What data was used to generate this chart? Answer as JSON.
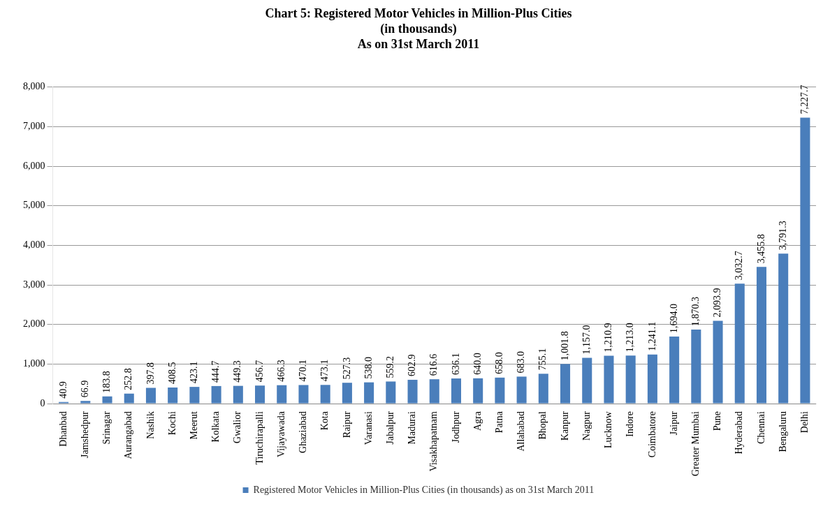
{
  "chart_data": {
    "type": "bar",
    "title": "Chart 5: Registered Motor Vehicles in Million-Plus Cities\n(in thousands)\nAs on 31st March 2011",
    "categories": [
      "Dhanbad",
      "Jamshedpur",
      "Srinagar",
      "Aurangabad",
      "Nashik",
      "Kochi",
      "Meerut",
      "Kolkata",
      "Gwalior",
      "Tiruchirapalli",
      "Vijayawada",
      "Ghaziabad",
      "Kota",
      "Raipur",
      "Varanasi",
      "Jabalpur",
      "Madurai",
      "Visakhapatnam",
      "Jodhpur",
      "Agra",
      "Patna",
      "Allahabad",
      "Bhopal",
      "Kanpur",
      "Nagpur",
      "Lucknow",
      "Indore",
      "Coimbatore",
      "Jaipur",
      "Greater Mumbai",
      "Pune",
      "Hyderabad",
      "Chennai",
      "Bengaluru",
      "Delhi"
    ],
    "series": [
      {
        "name": "Registered Motor Vehicles in Million-Plus Cities (in thousands) as on 31st March 2011",
        "color": "#4a7ebb",
        "values": [
          40.9,
          66.9,
          183.8,
          252.8,
          397.8,
          408.5,
          423.1,
          444.7,
          449.3,
          456.7,
          466.3,
          470.1,
          473.1,
          527.3,
          538.0,
          559.2,
          602.9,
          616.6,
          636.1,
          640.0,
          658.0,
          683.0,
          755.1,
          1001.8,
          1157.0,
          1210.9,
          1213.0,
          1241.1,
          1694.0,
          1870.3,
          2093.9,
          3032.7,
          3455.8,
          3791.3,
          7227.7
        ],
        "value_labels": [
          "40.9",
          "66.9",
          "183.8",
          "252.8",
          "397.8",
          "408.5",
          "423.1",
          "444.7",
          "449.3",
          "456.7",
          "466.3",
          "470.1",
          "473.1",
          "527.3",
          "538.0",
          "559.2",
          "602.9",
          "616.6",
          "636.1",
          "640.0",
          "658.0",
          "683.0",
          "755.1",
          "1,001.8",
          "1,157.0",
          "1,210.9",
          "1,213.0",
          "1,241.1",
          "1,694.0",
          "1,870.3",
          "2,093.9",
          "3,032.7",
          "3,455.8",
          "3,791.3",
          "7,227.7"
        ]
      }
    ],
    "ylim": [
      0,
      8000
    ],
    "yticks": [
      {
        "value": 0,
        "label": "0"
      },
      {
        "value": 1000,
        "label": "1,000"
      },
      {
        "value": 2000,
        "label": "2,000"
      },
      {
        "value": 3000,
        "label": "3,000"
      },
      {
        "value": 4000,
        "label": "4,000"
      },
      {
        "value": 5000,
        "label": "5,000"
      },
      {
        "value": 6000,
        "label": "6,000"
      },
      {
        "value": 7000,
        "label": "7,000"
      },
      {
        "value": 8000,
        "label": "8,000"
      }
    ],
    "grid": "y",
    "legend": "bottom"
  }
}
